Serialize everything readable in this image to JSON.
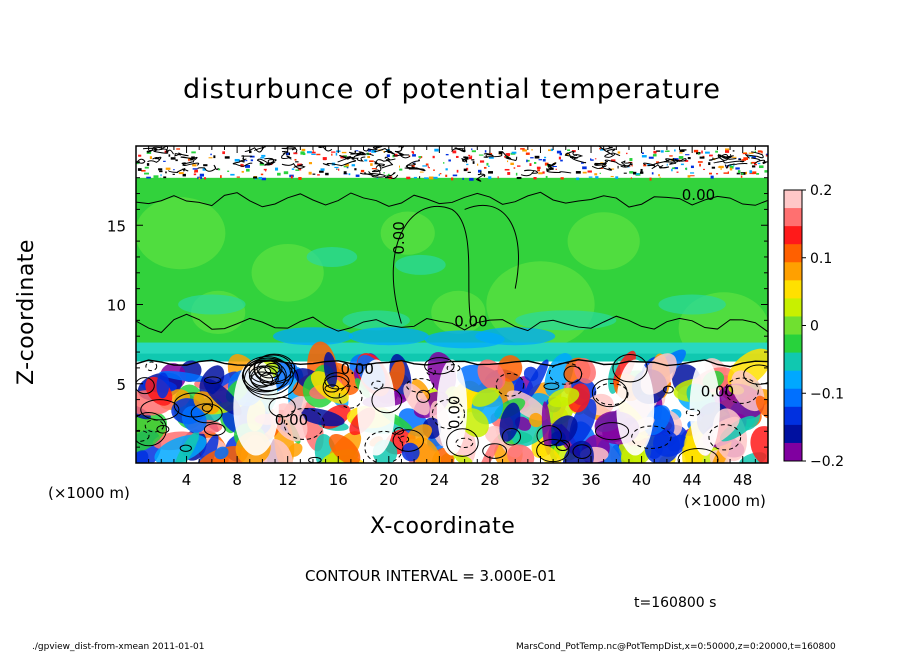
{
  "chart_data": {
    "type": "heatmap",
    "title": "disturbunce of potential temperature",
    "xlabel": "X-coordinate",
    "ylabel": "Z-coordinate",
    "x_unit_label": "(×1000 m)",
    "xlim": [
      0,
      50
    ],
    "ylim": [
      0,
      20
    ],
    "x_ticks": [
      4,
      8,
      12,
      16,
      20,
      24,
      28,
      32,
      36,
      40,
      44,
      48
    ],
    "y_ticks": [
      5,
      10,
      15
    ],
    "colorbar": {
      "ticks": [
        "0.2",
        "0.1",
        "0",
        "−0.1",
        "−0.2"
      ],
      "range": [
        -0.2,
        0.2
      ],
      "colors": [
        "#ffc8c8",
        "#ff7070",
        "#ff1a1a",
        "#ff6000",
        "#ffa000",
        "#ffe000",
        "#c8f000",
        "#70e030",
        "#28d23c",
        "#10c8b0",
        "#00a8ff",
        "#0070ff",
        "#0030e0",
        "#0010a0",
        "#8000a0"
      ]
    },
    "contour_labels": [
      "0.00",
      "0.00",
      "0.00",
      "0.00",
      "0.00",
      "0.00",
      "0.00"
    ],
    "field_regions": [
      {
        "name": "upper-noise",
        "z": [
          18.5,
          20
        ]
      },
      {
        "name": "stratosphere",
        "z": [
          7.5,
          18
        ]
      },
      {
        "name": "transition",
        "z": [
          6.5,
          7.5
        ]
      },
      {
        "name": "convective-layer",
        "z": [
          0,
          6.4
        ]
      }
    ]
  },
  "annotations": {
    "contour_interval": "CONTOUR INTERVAL = 3.000E-01",
    "time": "t=160800 s"
  },
  "footer": {
    "left": "./gpview_dist-from-xmean  2011-01-01",
    "right": "MarsCond_PotTemp.nc@PotTempDist,x=0:50000,z=0:20000,t=160800"
  }
}
